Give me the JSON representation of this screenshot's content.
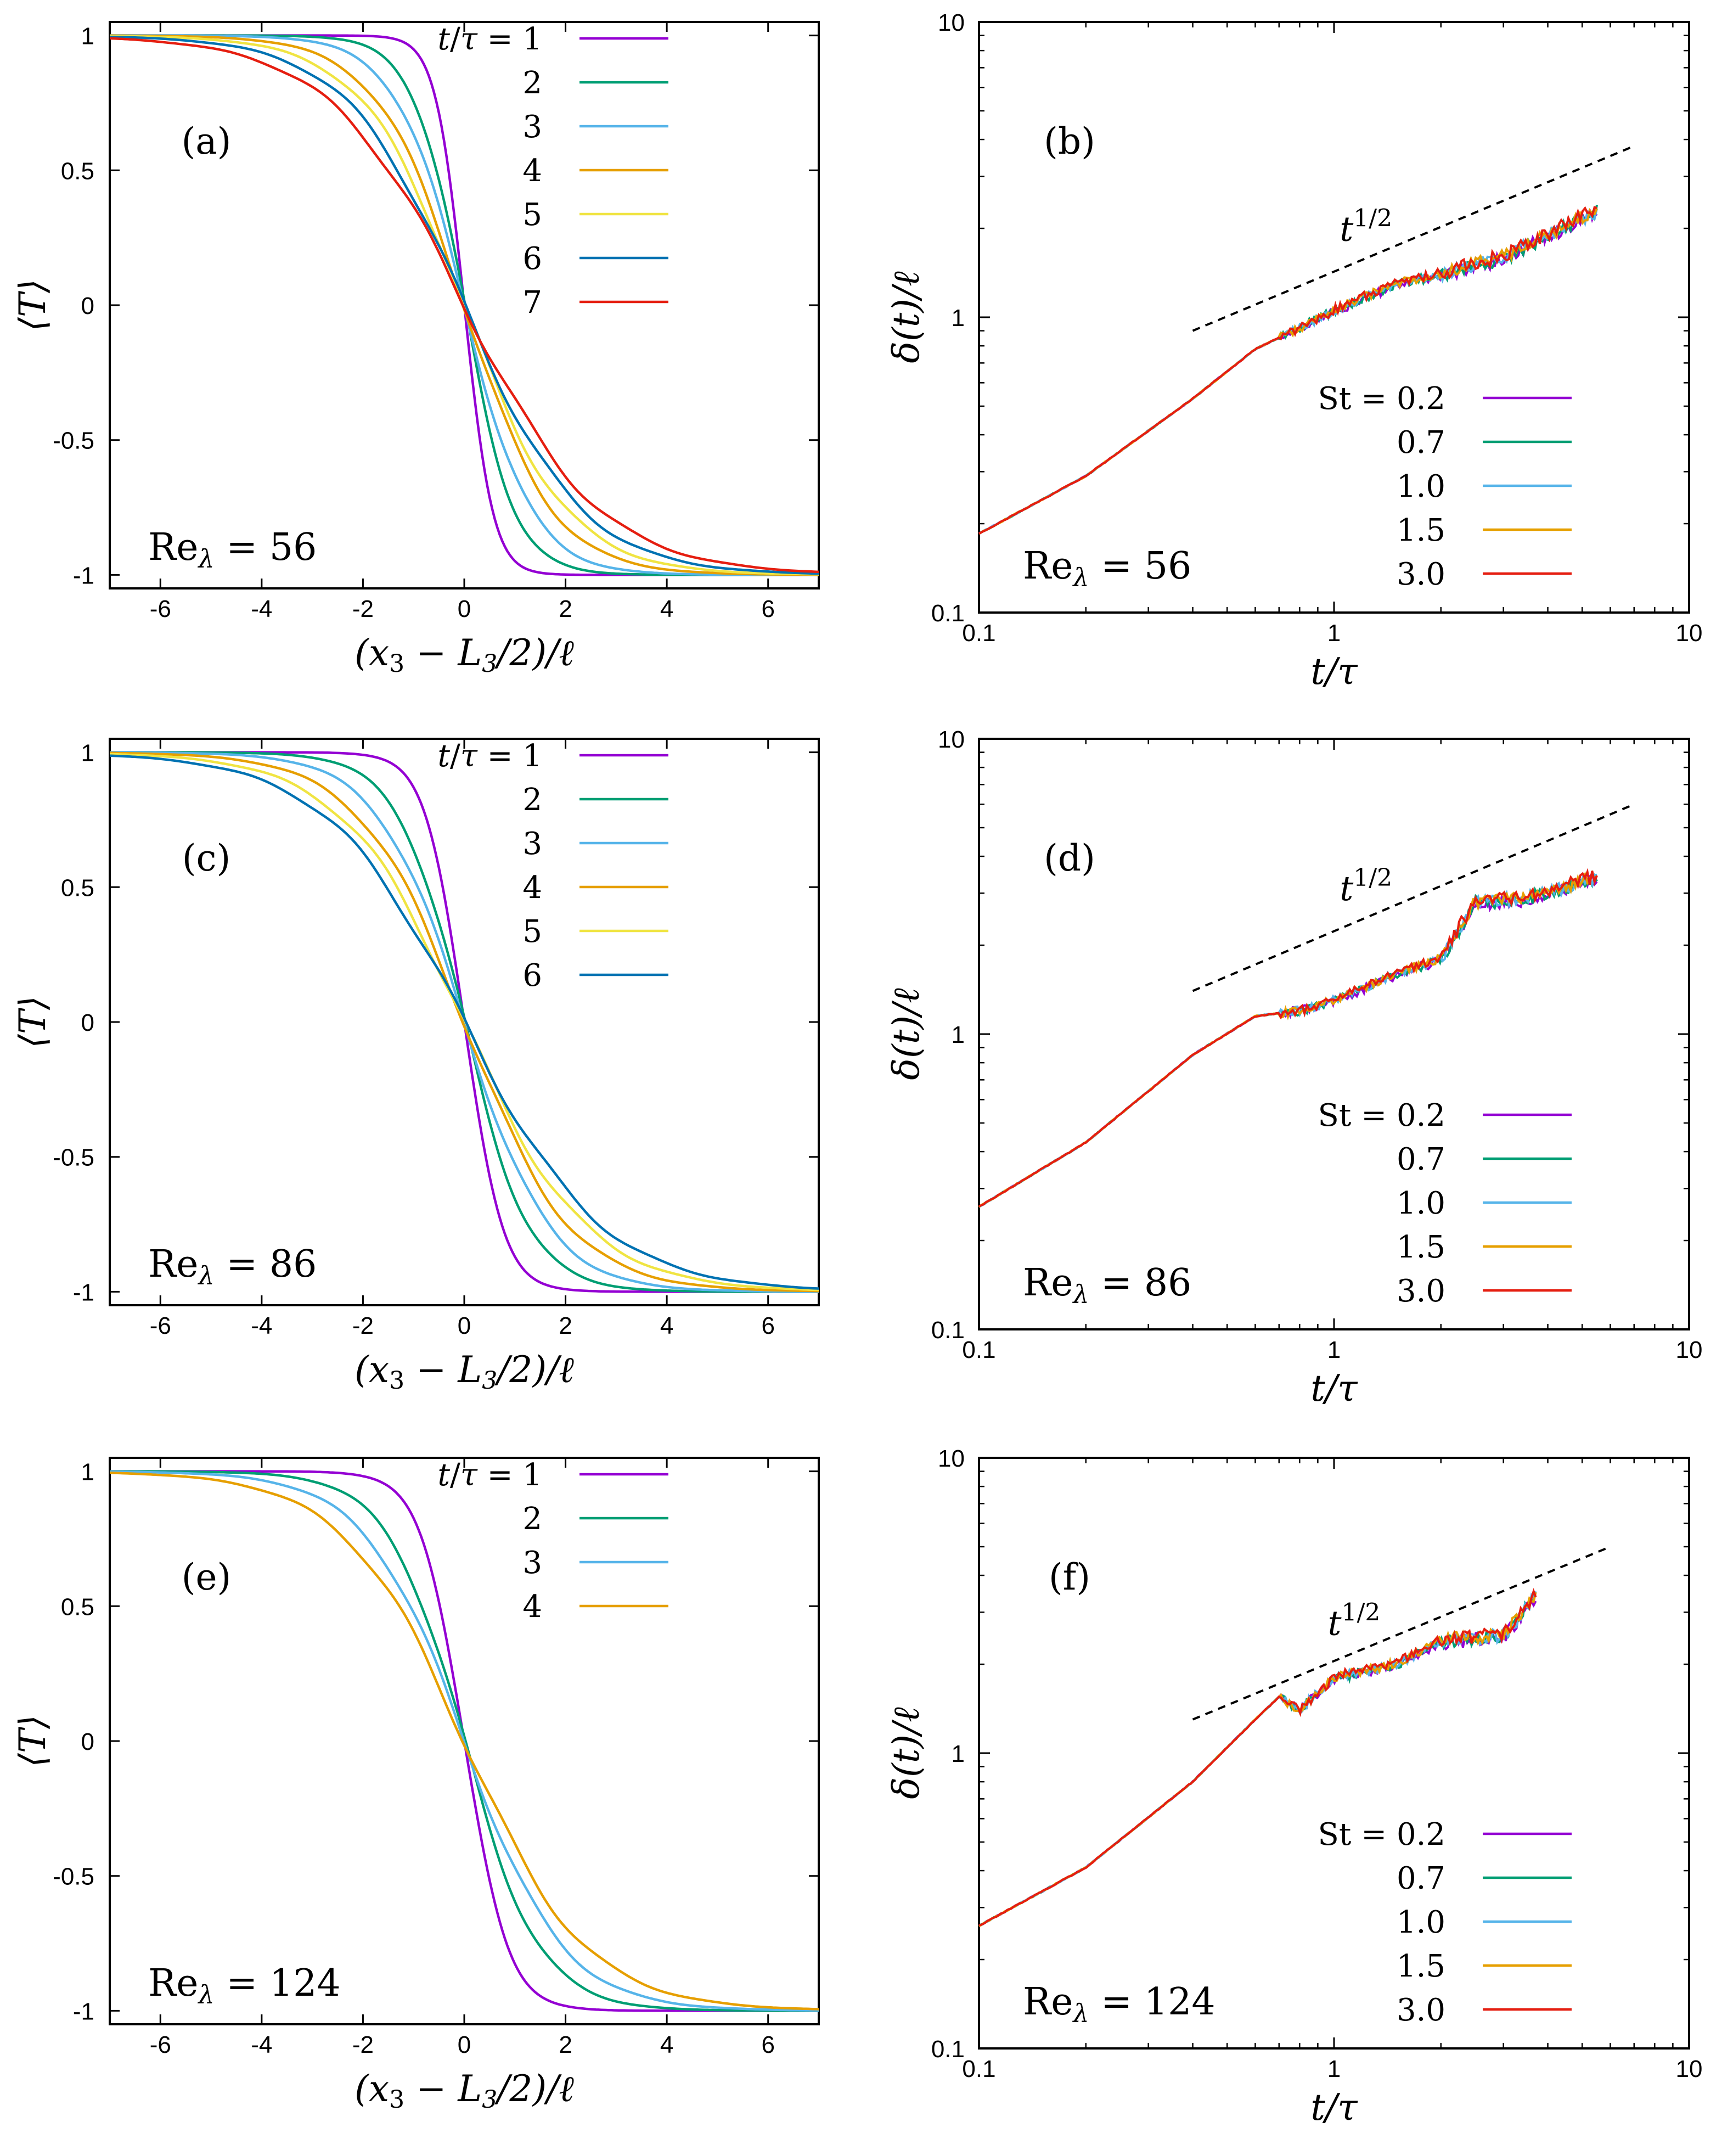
{
  "colors": {
    "c1": "#9400d3",
    "c2": "#009e73",
    "c3": "#56b4e9",
    "c4": "#e69f00",
    "c5": "#f0e442",
    "c6": "#0072b2",
    "c7": "#e51e10"
  },
  "chart_data": [
    {
      "panel": "(a)",
      "type": "line",
      "annotation": "Re_λ = 56",
      "xlabel": "(x3 − L3/2)/ℓ",
      "ylabel": "⟨T⟩",
      "xlim": [
        -7,
        7
      ],
      "ylim": [
        -1.05,
        1.05
      ],
      "xticks": [
        "-6",
        "-4",
        "-2",
        "0",
        "2",
        "4",
        "6"
      ],
      "yticks": [
        "1",
        "0.5",
        "0",
        "-0.5",
        "-1"
      ],
      "legend_title": "t/τ = 1",
      "legend_labels": [
        "2",
        "3",
        "4",
        "5",
        "6",
        "7"
      ],
      "series": [
        {
          "name": "1",
          "width": 0.55
        },
        {
          "name": "2",
          "width": 1.0
        },
        {
          "name": "3",
          "width": 1.35
        },
        {
          "name": "4",
          "width": 1.75
        },
        {
          "name": "5",
          "width": 2.05
        },
        {
          "name": "6",
          "width": 2.35
        },
        {
          "name": "7",
          "width": 2.7
        }
      ]
    },
    {
      "panel": "(c)",
      "type": "line",
      "annotation": "Re_λ = 86",
      "xlabel": "(x3 − L3/2)/ℓ",
      "ylabel": "⟨T⟩",
      "xlim": [
        -7,
        7
      ],
      "ylim": [
        -1.05,
        1.05
      ],
      "xticks": [
        "-6",
        "-4",
        "-2",
        "0",
        "2",
        "4",
        "6"
      ],
      "yticks": [
        "1",
        "0.5",
        "0",
        "-0.5",
        "-1"
      ],
      "legend_title": "t/τ = 1",
      "legend_labels": [
        "2",
        "3",
        "4",
        "5",
        "6"
      ],
      "series": [
        {
          "name": "1",
          "width": 0.75
        },
        {
          "name": "2",
          "width": 1.3
        },
        {
          "name": "3",
          "width": 1.7
        },
        {
          "name": "4",
          "width": 2.1
        },
        {
          "name": "5",
          "width": 2.45
        },
        {
          "name": "6",
          "width": 2.75
        }
      ]
    },
    {
      "panel": "(e)",
      "type": "line",
      "annotation": "Re_λ = 124",
      "xlabel": "(x3 − L3/2)/ℓ",
      "ylabel": "⟨T⟩",
      "xlim": [
        -7,
        7
      ],
      "ylim": [
        -1.05,
        1.05
      ],
      "xticks": [
        "-6",
        "-4",
        "-2",
        "0",
        "2",
        "4",
        "6"
      ],
      "yticks": [
        "1",
        "0.5",
        "0",
        "-0.5",
        "-1"
      ],
      "legend_title": "t/τ = 1",
      "legend_labels": [
        "2",
        "3",
        "4"
      ],
      "series": [
        {
          "name": "1",
          "width": 0.85
        },
        {
          "name": "2",
          "width": 1.5
        },
        {
          "name": "3",
          "width": 1.95
        },
        {
          "name": "4",
          "width": 2.4
        }
      ]
    },
    {
      "panel": "(b)",
      "type": "line",
      "scale": "log-log",
      "annotation": "Re_λ = 56",
      "xlabel": "t/τ",
      "ylabel": "δ(t)/ℓ",
      "xlim": [
        0.1,
        10
      ],
      "ylim": [
        0.1,
        10
      ],
      "xticks": [
        "0.1",
        "1",
        "10"
      ],
      "yticks": [
        "10",
        "1",
        "0.1"
      ],
      "slope_label": "t^1/2",
      "slope_line": {
        "t": [
          0.4,
          7.0
        ],
        "delta": [
          0.9,
          3.8
        ]
      },
      "legend_title": "St = 0.2",
      "legend_labels": [
        "0.7",
        "1.0",
        "1.5",
        "3.0"
      ],
      "points": [
        [
          0.1,
          0.185
        ],
        [
          0.2,
          0.29
        ],
        [
          0.4,
          0.53
        ],
        [
          0.6,
          0.78
        ],
        [
          0.8,
          0.92
        ],
        [
          1.0,
          1.05
        ],
        [
          1.5,
          1.3
        ],
        [
          2.0,
          1.4
        ],
        [
          3.0,
          1.6
        ],
        [
          4.0,
          1.9
        ],
        [
          5.5,
          2.3
        ]
      ],
      "series": [
        {
          "name": "0.2"
        },
        {
          "name": "0.7"
        },
        {
          "name": "1.0"
        },
        {
          "name": "1.5"
        },
        {
          "name": "3.0"
        }
      ]
    },
    {
      "panel": "(d)",
      "type": "line",
      "scale": "log-log",
      "annotation": "Re_λ = 86",
      "xlabel": "t/τ",
      "ylabel": "δ(t)/ℓ",
      "xlim": [
        0.1,
        10
      ],
      "ylim": [
        0.1,
        10
      ],
      "xticks": [
        "0.1",
        "1",
        "10"
      ],
      "yticks": [
        "10",
        "1",
        "0.1"
      ],
      "slope_label": "t^1/2",
      "slope_line": {
        "t": [
          0.4,
          7.0
        ],
        "delta": [
          1.4,
          6.0
        ]
      },
      "legend_title": "St = 0.2",
      "legend_labels": [
        "0.7",
        "1.0",
        "1.5",
        "3.0"
      ],
      "points": [
        [
          0.1,
          0.26
        ],
        [
          0.2,
          0.43
        ],
        [
          0.4,
          0.85
        ],
        [
          0.6,
          1.15
        ],
        [
          0.8,
          1.2
        ],
        [
          1.0,
          1.3
        ],
        [
          1.5,
          1.6
        ],
        [
          2.0,
          1.8
        ],
        [
          2.5,
          2.8
        ],
        [
          3.5,
          2.9
        ],
        [
          5.5,
          3.4
        ]
      ],
      "series": [
        {
          "name": "0.2"
        },
        {
          "name": "0.7"
        },
        {
          "name": "1.0"
        },
        {
          "name": "1.5"
        },
        {
          "name": "3.0"
        }
      ]
    },
    {
      "panel": "(f)",
      "type": "line",
      "scale": "log-log",
      "annotation": "Re_λ = 124",
      "xlabel": "t/τ",
      "ylabel": "δ(t)/ℓ",
      "xlim": [
        0.1,
        10
      ],
      "ylim": [
        0.1,
        10
      ],
      "xticks": [
        "0.1",
        "1",
        "10"
      ],
      "yticks": [
        "10",
        "1",
        "0.1"
      ],
      "slope_label": "t^1/2",
      "slope_line": {
        "t": [
          0.4,
          6.0
        ],
        "delta": [
          1.3,
          5.0
        ]
      },
      "legend_title": "St = 0.2",
      "legend_labels": [
        "0.7",
        "1.0",
        "1.5",
        "3.0"
      ],
      "points": [
        [
          0.1,
          0.26
        ],
        [
          0.2,
          0.41
        ],
        [
          0.4,
          0.8
        ],
        [
          0.6,
          1.3
        ],
        [
          0.7,
          1.55
        ],
        [
          0.8,
          1.4
        ],
        [
          1.0,
          1.8
        ],
        [
          1.5,
          2.0
        ],
        [
          2.0,
          2.4
        ],
        [
          3.0,
          2.5
        ],
        [
          3.7,
          3.4
        ]
      ],
      "series": [
        {
          "name": "0.2"
        },
        {
          "name": "0.7"
        },
        {
          "name": "1.0"
        },
        {
          "name": "1.5"
        },
        {
          "name": "3.0"
        }
      ]
    }
  ]
}
